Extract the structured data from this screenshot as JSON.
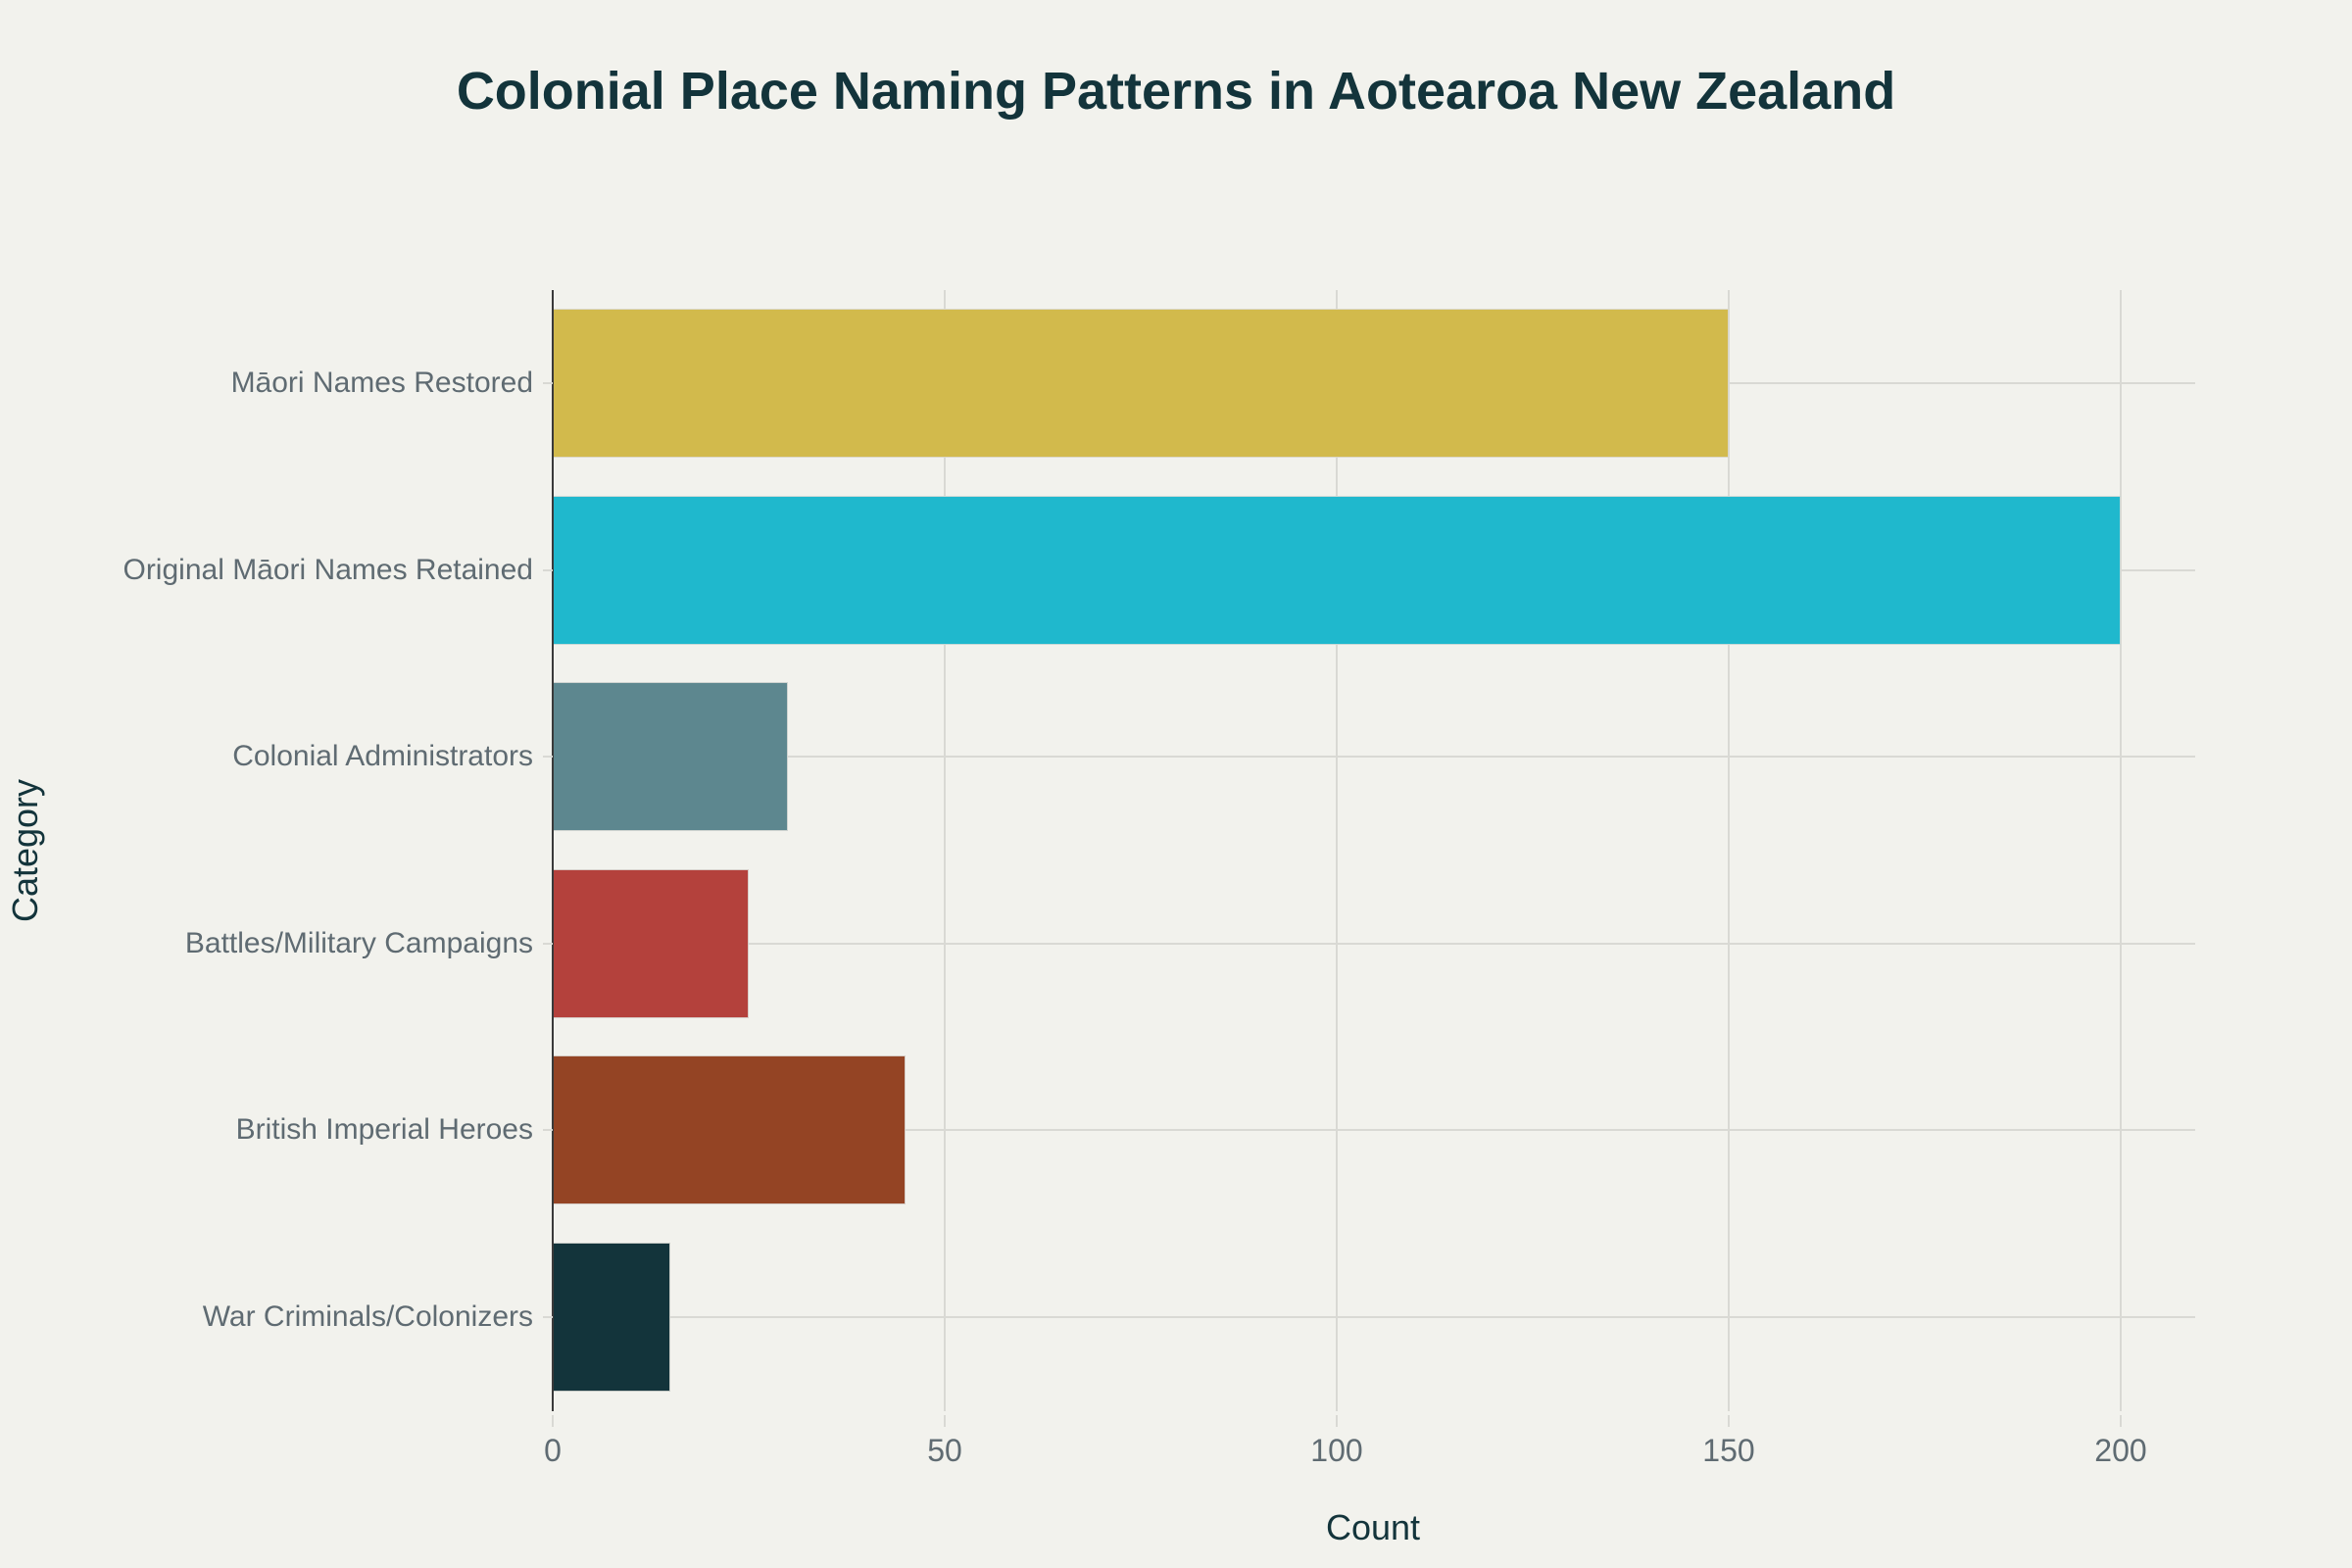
{
  "chart_data": {
    "type": "bar",
    "orientation": "horizontal",
    "title": "Colonial Place Naming Patterns in Aotearoa New Zealand",
    "xlabel": "Count",
    "ylabel": "Category",
    "categories": [
      "Māori Names Restored",
      "Original Māori Names Retained",
      "Colonial Administrators",
      "Battles/Military Campaigns",
      "British Imperial Heroes",
      "War Criminals/Colonizers"
    ],
    "values": [
      150,
      200,
      30,
      25,
      45,
      15
    ],
    "colors": [
      "#d2ba4c",
      "#1fb8cd",
      "#5d878f",
      "#b4413c",
      "#944424",
      "#13343b"
    ],
    "xlim": [
      0,
      210
    ],
    "xticks": [
      "0",
      "50",
      "100",
      "150",
      "200"
    ],
    "grid": true,
    "legend": false
  }
}
